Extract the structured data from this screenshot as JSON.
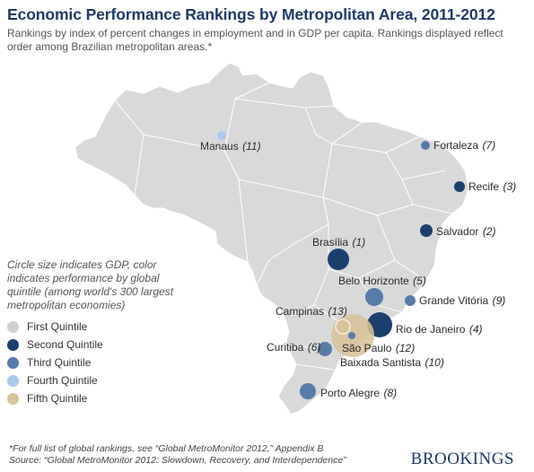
{
  "header": {
    "title": "Economic Performance Rankings by Metropolitan Area, 2011-2012",
    "subtitle": "Rankings by index of percent changes in employment and in GDP per capita. Rankings displayed reflect order among Brazilian metropolitan areas.*"
  },
  "legend": {
    "note": "Circle size indicates GDP, color indicates performance by global quintile (among world's 300 largest metropolitan economies)",
    "items": [
      {
        "label": "First Quintile",
        "color": "#cfcfcf"
      },
      {
        "label": "Second Quintile",
        "color": "#1d3f6e"
      },
      {
        "label": "Third Quintile",
        "color": "#587ba8"
      },
      {
        "label": "Fourth Quintile",
        "color": "#a9c9ef"
      },
      {
        "label": "Fifth Quintile",
        "color": "#d7c29a"
      }
    ]
  },
  "cities": [
    {
      "name": "Manaus",
      "rank": "(11)",
      "quintile": 4
    },
    {
      "name": "Fortaleza",
      "rank": "(7)",
      "quintile": 3
    },
    {
      "name": "Recife",
      "rank": "(3)",
      "quintile": 2
    },
    {
      "name": "Salvador",
      "rank": "(2)",
      "quintile": 2
    },
    {
      "name": "Brasília",
      "rank": "(1)",
      "quintile": 2
    },
    {
      "name": "Belo Horizonte",
      "rank": "(5)",
      "quintile": 3
    },
    {
      "name": "Grande Vitória",
      "rank": "(9)",
      "quintile": 3
    },
    {
      "name": "Rio de Janeiro",
      "rank": "(4)",
      "quintile": 2
    },
    {
      "name": "Campinas",
      "rank": "(13)",
      "quintile": 5
    },
    {
      "name": "São Paulo",
      "rank": "(12)",
      "quintile": 5
    },
    {
      "name": "Baixada Santista",
      "rank": "(10)",
      "quintile": 3
    },
    {
      "name": "Curitiba",
      "rank": "(6)",
      "quintile": 3
    },
    {
      "name": "Porto Alegre",
      "rank": "(8)",
      "quintile": 3
    }
  ],
  "footnote": {
    "line1": "*For full list of global rankings, see “Global MetroMonitor 2012,” Appendix B",
    "line2": "Source: “Global MetroMonitor 2012: Slowdown, Recovery, and Interdependence”"
  },
  "brand": "BROOKINGS"
}
